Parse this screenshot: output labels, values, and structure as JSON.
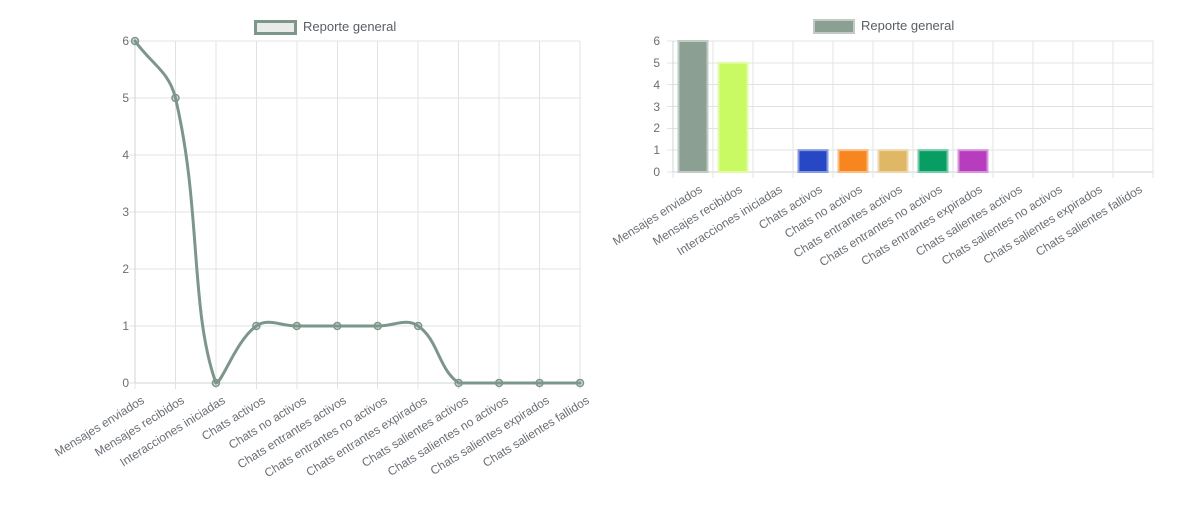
{
  "style": {
    "background": "#ffffff",
    "grid_color": "#e0e3e4",
    "axis_color": "#cfd4d6",
    "tick_text_color": "#6a6f75",
    "legend_text_color": "#585e64"
  },
  "chart_data": [
    {
      "type": "line",
      "title": "",
      "legend": "Reporte general",
      "legend_position": "top",
      "grid": true,
      "categories": [
        "Mensajes enviados",
        "Mensajes recibidos",
        "Interacciones iniciadas",
        "Chats activos",
        "Chats no activos",
        "Chats entrantes activos",
        "Chats entrantes no activos",
        "Chats entrantes expirados",
        "Chats salientes activos",
        "Chats salientes no activos",
        "Chats salientes expirados",
        "Chats salientes fallidos"
      ],
      "series": [
        {
          "name": "Reporte general",
          "values": [
            6,
            5,
            0,
            1,
            1,
            1,
            1,
            1,
            0,
            0,
            0,
            0
          ]
        }
      ],
      "xlabel": "",
      "ylabel": "",
      "ylim": [
        0,
        6
      ],
      "yticks": [
        0,
        1,
        2,
        3,
        4,
        5,
        6
      ],
      "line_color": "#7d968a",
      "line_smooth": true,
      "point_fill_opacity": 0.3,
      "legend_box_fill": "#e8ebe8",
      "legend_box_border": "#7d968a"
    },
    {
      "type": "bar",
      "title": "",
      "legend": "Reporte general",
      "legend_position": "top",
      "grid": true,
      "categories": [
        "Mensajes enviados",
        "Mensajes recibidos",
        "Interacciones iniciadas",
        "Chats activos",
        "Chats no activos",
        "Chats entrantes activos",
        "Chats entrantes no activos",
        "Chats entrantes expirados",
        "Chats salientes activos",
        "Chats salientes no activos",
        "Chats salientes expirados",
        "Chats salientes fallidos"
      ],
      "values": [
        6,
        5,
        0,
        1,
        1,
        1,
        1,
        1,
        0,
        0,
        0,
        0
      ],
      "bar_colors": [
        "#8ba092",
        "#c9fa63",
        null,
        "#2747c5",
        "#f6861d",
        "#dfb765",
        "#089e63",
        "#b83dbe",
        null,
        null,
        null,
        null
      ],
      "xlabel": "",
      "ylabel": "",
      "ylim": [
        0,
        6
      ],
      "yticks": [
        0,
        1,
        2,
        3,
        4,
        5,
        6
      ],
      "legend_box_fill": "#8ba092"
    }
  ]
}
